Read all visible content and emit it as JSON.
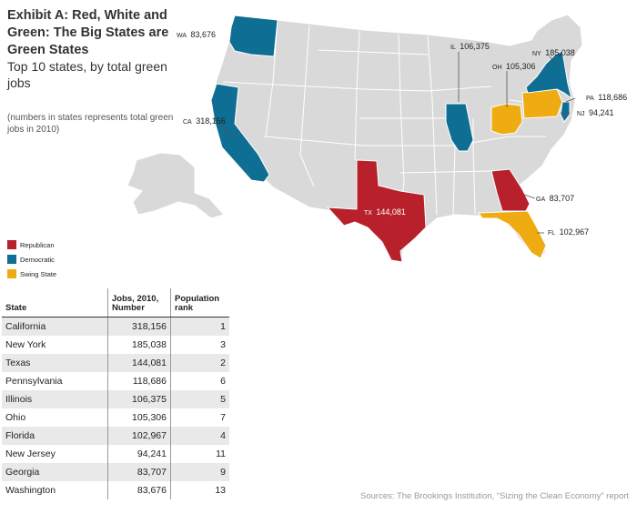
{
  "title": "Exhibit A: Red, White and Green: The Big States are Green States",
  "subtitle": "Top 10 states, by total green jobs",
  "note": "(numbers in states represents total green jobs in 2010)",
  "colors": {
    "republican": "#b8212c",
    "democratic": "#0f6e93",
    "swing": "#efab12",
    "other": "#d9d9d9",
    "border": "#ffffff"
  },
  "legend": [
    {
      "label": "Republican",
      "color": "#b8212c"
    },
    {
      "label": "Democratic",
      "color": "#0f6e93"
    },
    {
      "label": "Swing State",
      "color": "#efab12"
    }
  ],
  "map_labels": {
    "wa": {
      "abbr": "WA",
      "value": "83,676"
    },
    "ca": {
      "abbr": "CA",
      "value": "318,156"
    },
    "tx": {
      "abbr": "TX",
      "value": "144,081"
    },
    "il": {
      "abbr": "IL",
      "value": "106,375"
    },
    "oh": {
      "abbr": "OH",
      "value": "105,306"
    },
    "ny": {
      "abbr": "NY",
      "value": "185,038"
    },
    "pa": {
      "abbr": "PA",
      "value": "118,686"
    },
    "nj": {
      "abbr": "NJ",
      "value": "94,241"
    },
    "ga": {
      "abbr": "GA",
      "value": "83,707"
    },
    "fl": {
      "abbr": "FL",
      "value": "102,967"
    }
  },
  "table": {
    "headers": [
      "State",
      "Jobs, 2010, Number",
      "Population rank"
    ],
    "rows": [
      {
        "state": "California",
        "jobs": "318,156",
        "rank": "1"
      },
      {
        "state": "New York",
        "jobs": "185,038",
        "rank": "3"
      },
      {
        "state": "Texas",
        "jobs": "144,081",
        "rank": "2"
      },
      {
        "state": "Pennsylvania",
        "jobs": "118,686",
        "rank": "6"
      },
      {
        "state": "Illinois",
        "jobs": "106,375",
        "rank": "5"
      },
      {
        "state": "Ohio",
        "jobs": "105,306",
        "rank": "7"
      },
      {
        "state": "Florida",
        "jobs": "102,967",
        "rank": "4"
      },
      {
        "state": "New Jersey",
        "jobs": "94,241",
        "rank": "11"
      },
      {
        "state": "Georgia",
        "jobs": "83,707",
        "rank": "9"
      },
      {
        "state": "Washington",
        "jobs": "83,676",
        "rank": "13"
      }
    ]
  },
  "source": "Sources: The Brookings Institution, “Sizing the Clean Economy” report"
}
